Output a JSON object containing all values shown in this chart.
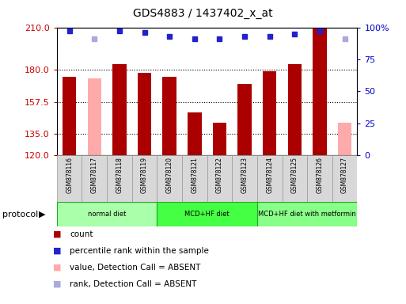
{
  "title": "GDS4883 / 1437402_x_at",
  "samples": [
    "GSM878116",
    "GSM878117",
    "GSM878118",
    "GSM878119",
    "GSM878120",
    "GSM878121",
    "GSM878122",
    "GSM878123",
    "GSM878124",
    "GSM878125",
    "GSM878126",
    "GSM878127"
  ],
  "bar_values": [
    175,
    174,
    184,
    178,
    175,
    150,
    143,
    170,
    179,
    184,
    210,
    143
  ],
  "bar_absent": [
    false,
    true,
    false,
    false,
    false,
    false,
    false,
    false,
    false,
    false,
    false,
    true
  ],
  "percentile_values": [
    97,
    91,
    97,
    96,
    93,
    91,
    91,
    93,
    93,
    95,
    97,
    91
  ],
  "percentile_absent": [
    false,
    true,
    false,
    false,
    false,
    false,
    false,
    false,
    false,
    false,
    false,
    true
  ],
  "ylim_left": [
    120,
    210
  ],
  "ylim_right": [
    0,
    100
  ],
  "yticks_left": [
    120,
    135,
    157.5,
    180,
    210
  ],
  "yticks_right": [
    0,
    25,
    50,
    75,
    100
  ],
  "bar_color_normal": "#aa0000",
  "bar_color_absent": "#ffaaaa",
  "dot_color_normal": "#2222cc",
  "dot_color_absent": "#aaaadd",
  "protocol_groups": [
    {
      "label": "normal diet",
      "start": 0,
      "end": 3,
      "color": "#aaffaa"
    },
    {
      "label": "MCD+HF diet",
      "start": 4,
      "end": 7,
      "color": "#44ff44"
    },
    {
      "label": "MCD+HF diet with metformin",
      "start": 8,
      "end": 11,
      "color": "#88ff88"
    }
  ],
  "legend_items": [
    {
      "label": "count",
      "color": "#aa0000"
    },
    {
      "label": "percentile rank within the sample",
      "color": "#2222cc"
    },
    {
      "label": "value, Detection Call = ABSENT",
      "color": "#ffaaaa"
    },
    {
      "label": "rank, Detection Call = ABSENT",
      "color": "#aaaadd"
    }
  ],
  "protocol_label": "protocol",
  "background_color": "#ffffff",
  "plot_bg_color": "#ffffff",
  "tick_label_color_left": "#cc0000",
  "tick_label_color_right": "#0000cc",
  "sample_box_color": "#cccccc",
  "sample_box_edge": "#999999"
}
